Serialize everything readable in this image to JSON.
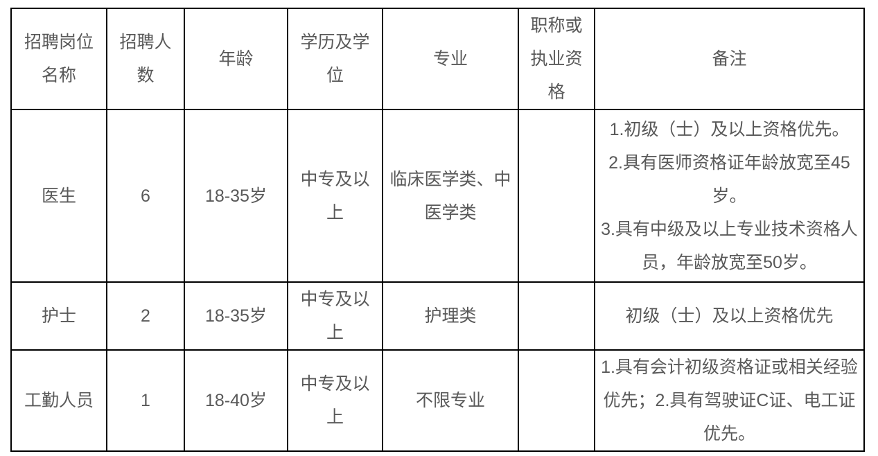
{
  "table": {
    "headers": [
      "招聘岗位名称",
      "招聘人数",
      "年龄",
      "学历及学位",
      "专业",
      "职称或执业资格",
      "备注"
    ],
    "rows": [
      {
        "position": "医生",
        "headcount": "6",
        "age": "18-35岁",
        "education": "中专及以上",
        "major": "临床医学类、中医学类",
        "qualification": "",
        "remarks": [
          "1.初级（士）及以上资格优先。",
          "2.具有医师资格证年龄放宽至45岁。",
          "3.具有中级及以上专业技术资格人员，年龄放宽至50岁。"
        ]
      },
      {
        "position": "护士",
        "headcount": "2",
        "age": "18-35岁",
        "education": "中专及以上",
        "major": "护理类",
        "qualification": "",
        "remarks": [
          "初级（士）及以上资格优先"
        ]
      },
      {
        "position": "工勤人员",
        "headcount": "1",
        "age": "18-40岁",
        "education": "中专及以上",
        "major": "不限专业",
        "qualification": "",
        "remarks": [
          "1.具有会计初级资格证或相关经验优先；2.具有驾驶证C证、电工证优先。"
        ]
      }
    ],
    "colors": {
      "border": "#000000",
      "text": "#595959",
      "background": "#ffffff"
    }
  }
}
